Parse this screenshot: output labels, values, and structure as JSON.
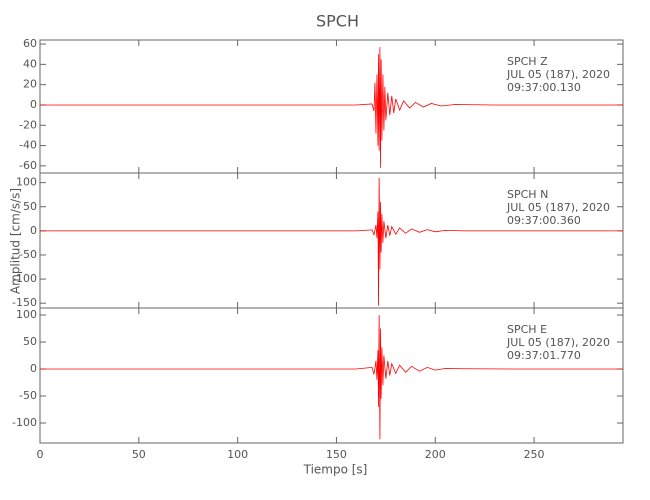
{
  "chart_data": [
    {
      "type": "line",
      "title": "SPCH",
      "color": "#ff0000",
      "annotations": [
        "SPCH   Z",
        "JUL 05 (187), 2020",
        "09:37:00.130"
      ],
      "xlim": [
        0,
        295
      ],
      "ylim": [
        -67,
        64
      ],
      "yticks": [
        -60,
        -40,
        -20,
        0,
        20,
        40,
        60
      ],
      "x": [
        0,
        40,
        80,
        120,
        160,
        168,
        169,
        169.5,
        170,
        170.5,
        171,
        171.3,
        171.6,
        172,
        172.3,
        172.6,
        173,
        173.5,
        174,
        174.5,
        175,
        176,
        177,
        178,
        179,
        180,
        182,
        184,
        187,
        190,
        194,
        198,
        203,
        210,
        230,
        260,
        295
      ],
      "values": [
        0,
        0,
        0,
        0,
        0,
        1,
        -6,
        22,
        -28,
        30,
        -40,
        50,
        -45,
        57,
        -62,
        45,
        -35,
        30,
        -25,
        18,
        -15,
        12,
        -10,
        9,
        -8,
        6,
        -5,
        4,
        -3,
        2.5,
        -2,
        1.5,
        -1,
        0.5,
        0,
        0,
        0
      ]
    },
    {
      "type": "line",
      "ylabel": "Amplitud [cm/s/s]",
      "color": "#ff0000",
      "annotations": [
        "SPCH   N",
        "JUL 05 (187), 2020",
        "09:37:00.360"
      ],
      "xlim": [
        0,
        295
      ],
      "ylim": [
        -160,
        120
      ],
      "yticks": [
        -150,
        -100,
        -50,
        0,
        50,
        100
      ],
      "x": [
        0,
        40,
        80,
        120,
        160,
        168,
        169,
        170,
        170.5,
        171,
        171.3,
        171.6,
        172,
        172.3,
        172.6,
        173,
        173.5,
        174,
        175,
        176,
        177,
        178,
        180,
        182,
        185,
        188,
        192,
        196,
        200,
        205,
        215,
        240,
        270,
        295
      ],
      "values": [
        0,
        0,
        0,
        0,
        0,
        2,
        -8,
        12,
        -15,
        40,
        -155,
        110,
        -80,
        60,
        -45,
        35,
        -25,
        20,
        -15,
        12,
        -10,
        9,
        -7,
        6,
        -5,
        4,
        -3,
        2.5,
        -2,
        1,
        0,
        0,
        0,
        0
      ]
    },
    {
      "type": "line",
      "xlabel": "Tiempo [s]",
      "color": "#ff0000",
      "annotations": [
        "SPCH   E",
        "JUL 05 (187), 2020",
        "09:37:01.770"
      ],
      "xlim": [
        0,
        295
      ],
      "ylim": [
        -137,
        113
      ],
      "yticks": [
        -100,
        -50,
        0,
        50,
        100
      ],
      "xticks": [
        0,
        50,
        100,
        150,
        200,
        250
      ],
      "x": [
        0,
        40,
        80,
        120,
        160,
        168,
        169,
        170,
        170.5,
        171,
        171.3,
        171.6,
        172,
        172.3,
        172.6,
        173,
        173.5,
        174,
        175,
        176,
        177,
        178,
        180,
        182,
        185,
        188,
        192,
        196,
        200,
        205,
        215,
        240,
        270,
        295
      ],
      "values": [
        0,
        0,
        0,
        0,
        0,
        3,
        -10,
        15,
        -20,
        35,
        -70,
        100,
        -130,
        75,
        -55,
        40,
        -30,
        25,
        -18,
        15,
        -12,
        10,
        -8,
        7,
        -6,
        5,
        -4,
        3,
        -2,
        1,
        0.5,
        0,
        0,
        0
      ]
    }
  ]
}
